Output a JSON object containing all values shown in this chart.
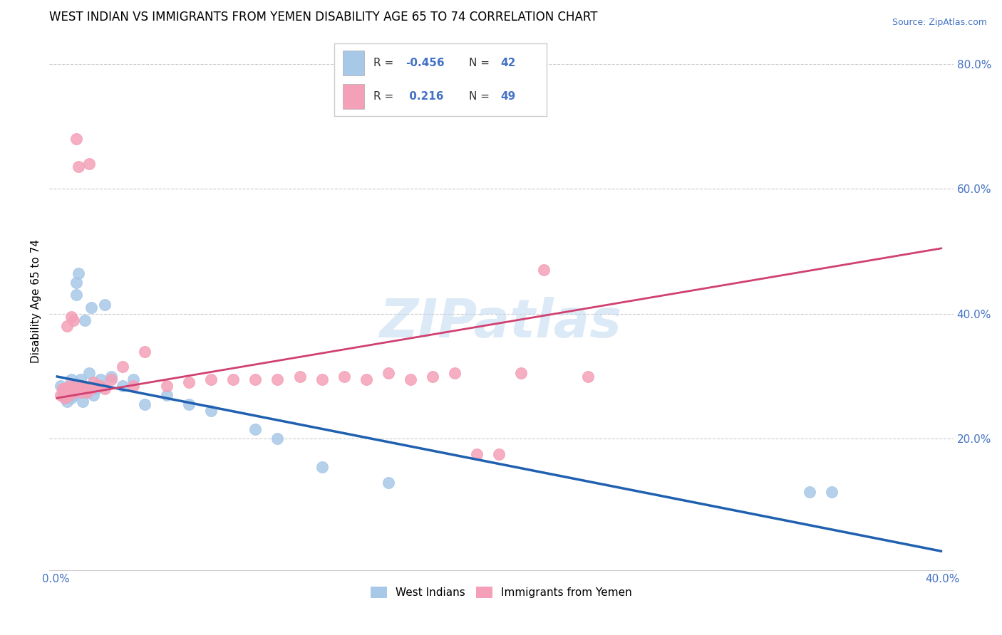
{
  "title": "WEST INDIAN VS IMMIGRANTS FROM YEMEN DISABILITY AGE 65 TO 74 CORRELATION CHART",
  "source": "Source: ZipAtlas.com",
  "ylabel": "Disability Age 65 to 74",
  "xlim": [
    -0.003,
    0.405
  ],
  "ylim": [
    -0.01,
    0.85
  ],
  "xticks": [
    0.0,
    0.4
  ],
  "xticklabels": [
    "0.0%",
    "40.0%"
  ],
  "yticks_right": [
    0.2,
    0.4,
    0.6,
    0.8
  ],
  "ytick_right_labels": [
    "20.0%",
    "40.0%",
    "60.0%",
    "80.0%"
  ],
  "blue_color": "#a8c8e8",
  "pink_color": "#f4a0b8",
  "blue_line_color": "#2060b0",
  "pink_line_color": "#d04070",
  "watermark": "ZIPatlas",
  "legend_label1": "West Indians",
  "legend_label2": "Immigrants from Yemen",
  "blue_R": "-0.456",
  "blue_N": "42",
  "pink_R": "0.216",
  "pink_N": "49",
  "blue_x": [
    0.002,
    0.003,
    0.004,
    0.004,
    0.005,
    0.005,
    0.005,
    0.006,
    0.006,
    0.007,
    0.007,
    0.008,
    0.008,
    0.009,
    0.009,
    0.01,
    0.01,
    0.011,
    0.012,
    0.012,
    0.013,
    0.013,
    0.014,
    0.015,
    0.016,
    0.017,
    0.018,
    0.02,
    0.022,
    0.025,
    0.03,
    0.035,
    0.04,
    0.05,
    0.06,
    0.07,
    0.09,
    0.1,
    0.12,
    0.15,
    0.34,
    0.35
  ],
  "blue_y": [
    0.285,
    0.27,
    0.265,
    0.27,
    0.28,
    0.275,
    0.26,
    0.275,
    0.27,
    0.265,
    0.295,
    0.28,
    0.27,
    0.45,
    0.43,
    0.465,
    0.28,
    0.295,
    0.26,
    0.28,
    0.39,
    0.275,
    0.275,
    0.305,
    0.41,
    0.27,
    0.28,
    0.295,
    0.415,
    0.3,
    0.285,
    0.295,
    0.255,
    0.27,
    0.255,
    0.245,
    0.215,
    0.2,
    0.155,
    0.13,
    0.115,
    0.115
  ],
  "pink_x": [
    0.002,
    0.003,
    0.004,
    0.004,
    0.005,
    0.005,
    0.006,
    0.006,
    0.007,
    0.007,
    0.008,
    0.008,
    0.009,
    0.009,
    0.01,
    0.01,
    0.011,
    0.012,
    0.013,
    0.014,
    0.015,
    0.016,
    0.017,
    0.018,
    0.02,
    0.022,
    0.025,
    0.03,
    0.035,
    0.04,
    0.05,
    0.06,
    0.07,
    0.08,
    0.09,
    0.1,
    0.11,
    0.12,
    0.13,
    0.14,
    0.15,
    0.16,
    0.17,
    0.18,
    0.19,
    0.2,
    0.21,
    0.22,
    0.24
  ],
  "pink_y": [
    0.27,
    0.28,
    0.265,
    0.28,
    0.38,
    0.27,
    0.285,
    0.27,
    0.395,
    0.28,
    0.275,
    0.39,
    0.285,
    0.68,
    0.28,
    0.635,
    0.275,
    0.285,
    0.28,
    0.275,
    0.64,
    0.28,
    0.29,
    0.285,
    0.285,
    0.28,
    0.295,
    0.315,
    0.285,
    0.34,
    0.285,
    0.29,
    0.295,
    0.295,
    0.295,
    0.295,
    0.3,
    0.295,
    0.3,
    0.295,
    0.305,
    0.295,
    0.3,
    0.305,
    0.175,
    0.175,
    0.305,
    0.47,
    0.3
  ],
  "grid_color": "#cccccc",
  "background_color": "#ffffff",
  "title_fontsize": 12,
  "axis_label_fontsize": 11,
  "tick_fontsize": 11,
  "marker_size": 130
}
